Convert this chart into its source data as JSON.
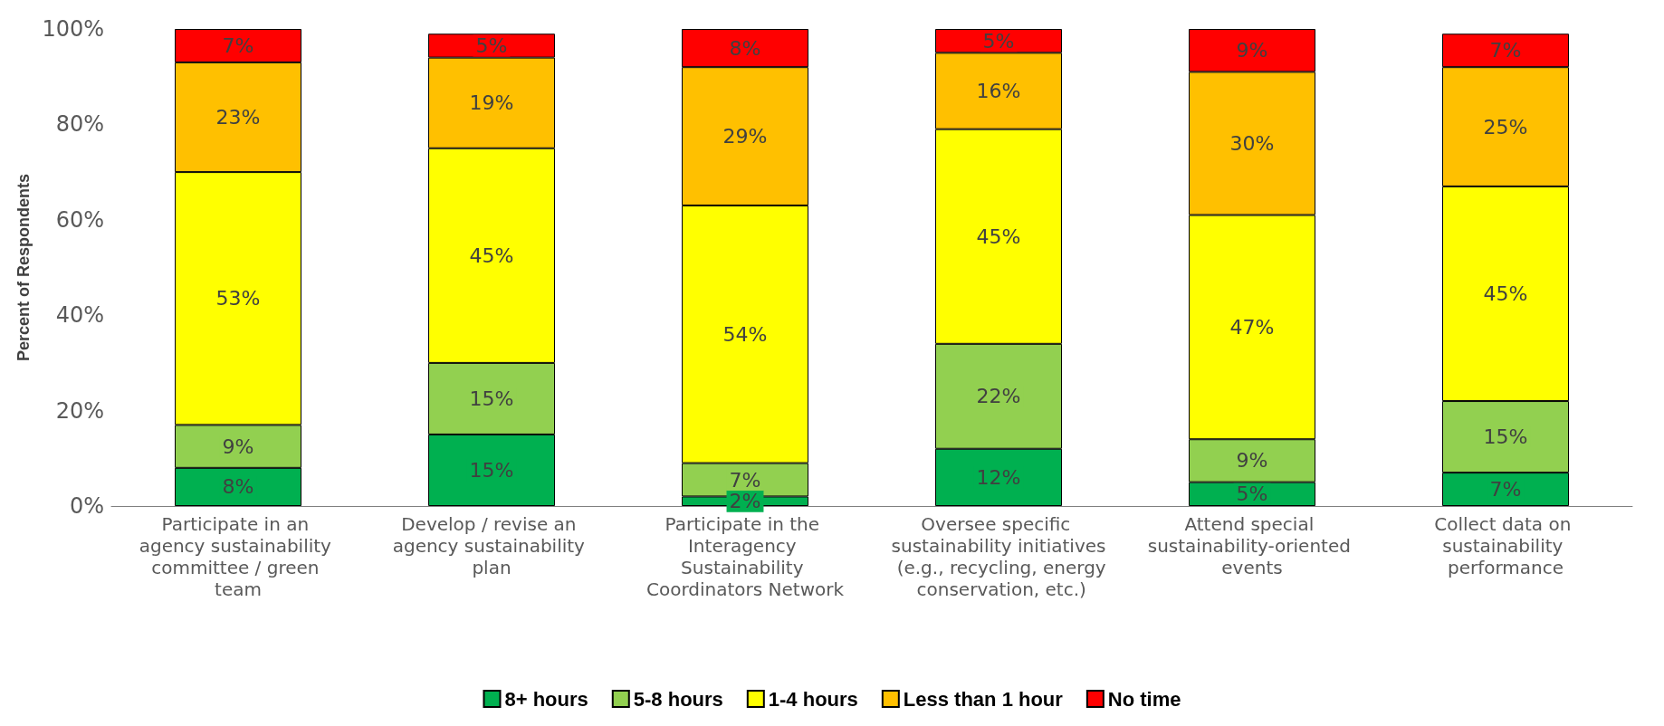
{
  "chart_data": {
    "type": "bar",
    "stacked": true,
    "ylabel": "Percent of Respondents",
    "categories": [
      "Participate in an agency sustainability committee / green team",
      "Develop / revise an agency sustainability plan",
      "Participate in the Interagency Sustainability Coordinators Network",
      "Oversee specific sustainability initiatives (e.g., recycling, energy conservation, etc.)",
      "Attend special sustainability-oriented events",
      "Collect data on sustainability performance"
    ],
    "series": [
      {
        "name": "8+ hours",
        "color": "#00b050",
        "values": [
          8,
          15,
          2,
          12,
          5,
          7
        ],
        "value_labels": [
          "8%",
          "15%",
          "2%",
          "12%",
          "5%",
          "7%"
        ]
      },
      {
        "name": "5-8 hours",
        "color": "#92d050",
        "values": [
          9,
          15,
          7,
          22,
          9,
          15
        ],
        "value_labels": [
          "9%",
          "15%",
          "7%",
          "22%",
          "9%",
          "15%"
        ]
      },
      {
        "name": "1-4 hours",
        "color": "#ffff00",
        "values": [
          53,
          45,
          54,
          45,
          47,
          45
        ],
        "value_labels": [
          "53%",
          "45%",
          "54%",
          "45%",
          "47%",
          "45%"
        ]
      },
      {
        "name": "Less than 1 hour",
        "color": "#ffc000",
        "values": [
          23,
          19,
          29,
          16,
          30,
          25
        ],
        "value_labels": [
          "23%",
          "19%",
          "29%",
          "16%",
          "30%",
          "25%"
        ]
      },
      {
        "name": "No time",
        "color": "#ff0000",
        "values": [
          7,
          5,
          8,
          5,
          9,
          7
        ],
        "value_labels": [
          "7%",
          "5%",
          "8%",
          "5%",
          "9%",
          "7%"
        ]
      }
    ],
    "ylim": [
      0,
      100
    ],
    "yticks": [
      {
        "value": 0,
        "label": "0%"
      },
      {
        "value": 20,
        "label": "20%"
      },
      {
        "value": 40,
        "label": "40%"
      },
      {
        "value": 60,
        "label": "60%"
      },
      {
        "value": 80,
        "label": "80%"
      },
      {
        "value": 100,
        "label": "100%"
      }
    ],
    "grid": false,
    "legend": "bottom"
  }
}
